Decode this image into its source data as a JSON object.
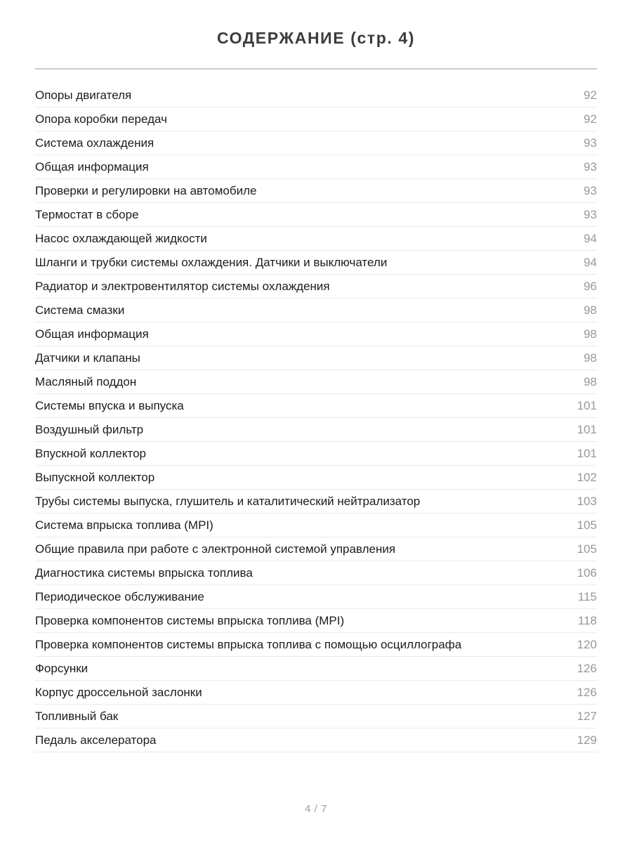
{
  "page": {
    "title": "СОДЕРЖАНИЕ (стр. 4)",
    "footer_pager": "4 / 7"
  },
  "toc": {
    "entries": [
      {
        "label": "Опоры двигателя",
        "page": "92"
      },
      {
        "label": "Опора коробки передач",
        "page": "92"
      },
      {
        "label": "Система охлаждения",
        "page": "93"
      },
      {
        "label": "Общая информация",
        "page": "93"
      },
      {
        "label": "Проверки и регулировки на автомобиле",
        "page": "93"
      },
      {
        "label": "Термостат в сборе",
        "page": "93"
      },
      {
        "label": "Насос охлаждающей жидкости",
        "page": "94"
      },
      {
        "label": "Шланги и трубки системы охлаждения. Датчики и выключатели",
        "page": "94"
      },
      {
        "label": "Радиатор и электровентилятор системы охлаждения",
        "page": "96"
      },
      {
        "label": "Система смазки",
        "page": "98"
      },
      {
        "label": "Общая информация",
        "page": "98"
      },
      {
        "label": "Датчики и клапаны",
        "page": "98"
      },
      {
        "label": "Масляный поддон",
        "page": "98"
      },
      {
        "label": "Системы впуска и выпуска",
        "page": "101"
      },
      {
        "label": "Воздушный фильтр",
        "page": "101"
      },
      {
        "label": "Впускной коллектор",
        "page": "101"
      },
      {
        "label": "Выпускной коллектор",
        "page": "102"
      },
      {
        "label": "Трубы системы выпуска, глушитель и каталитический нейтрализатор",
        "page": "103"
      },
      {
        "label": "Система впрыска топлива (MPI)",
        "page": "105"
      },
      {
        "label": "Общие правила при работе с электронной системой управления",
        "page": "105"
      },
      {
        "label": "Диагностика системы впрыска топлива",
        "page": "106"
      },
      {
        "label": "Периодическое обслуживание",
        "page": "115"
      },
      {
        "label": "Проверка компонентов системы впрыска топлива (MPI)",
        "page": "118"
      },
      {
        "label": "Проверка компонентов системы впрыска топлива с помощью осциллографа",
        "page": "120"
      },
      {
        "label": "Форсунки",
        "page": "126"
      },
      {
        "label": "Корпус дроссельной заслонки",
        "page": "126"
      },
      {
        "label": "Топливный бак",
        "page": "127"
      },
      {
        "label": "Педаль акселератора",
        "page": "129"
      }
    ]
  },
  "colors": {
    "background": "#ffffff",
    "title_text": "#3c3c3e",
    "entry_text": "#1c1c1e",
    "page_number_text": "#98989d",
    "top_rule": "#cccccc",
    "row_divider": "#eaeaea",
    "footer_text": "#9e9ea3"
  }
}
